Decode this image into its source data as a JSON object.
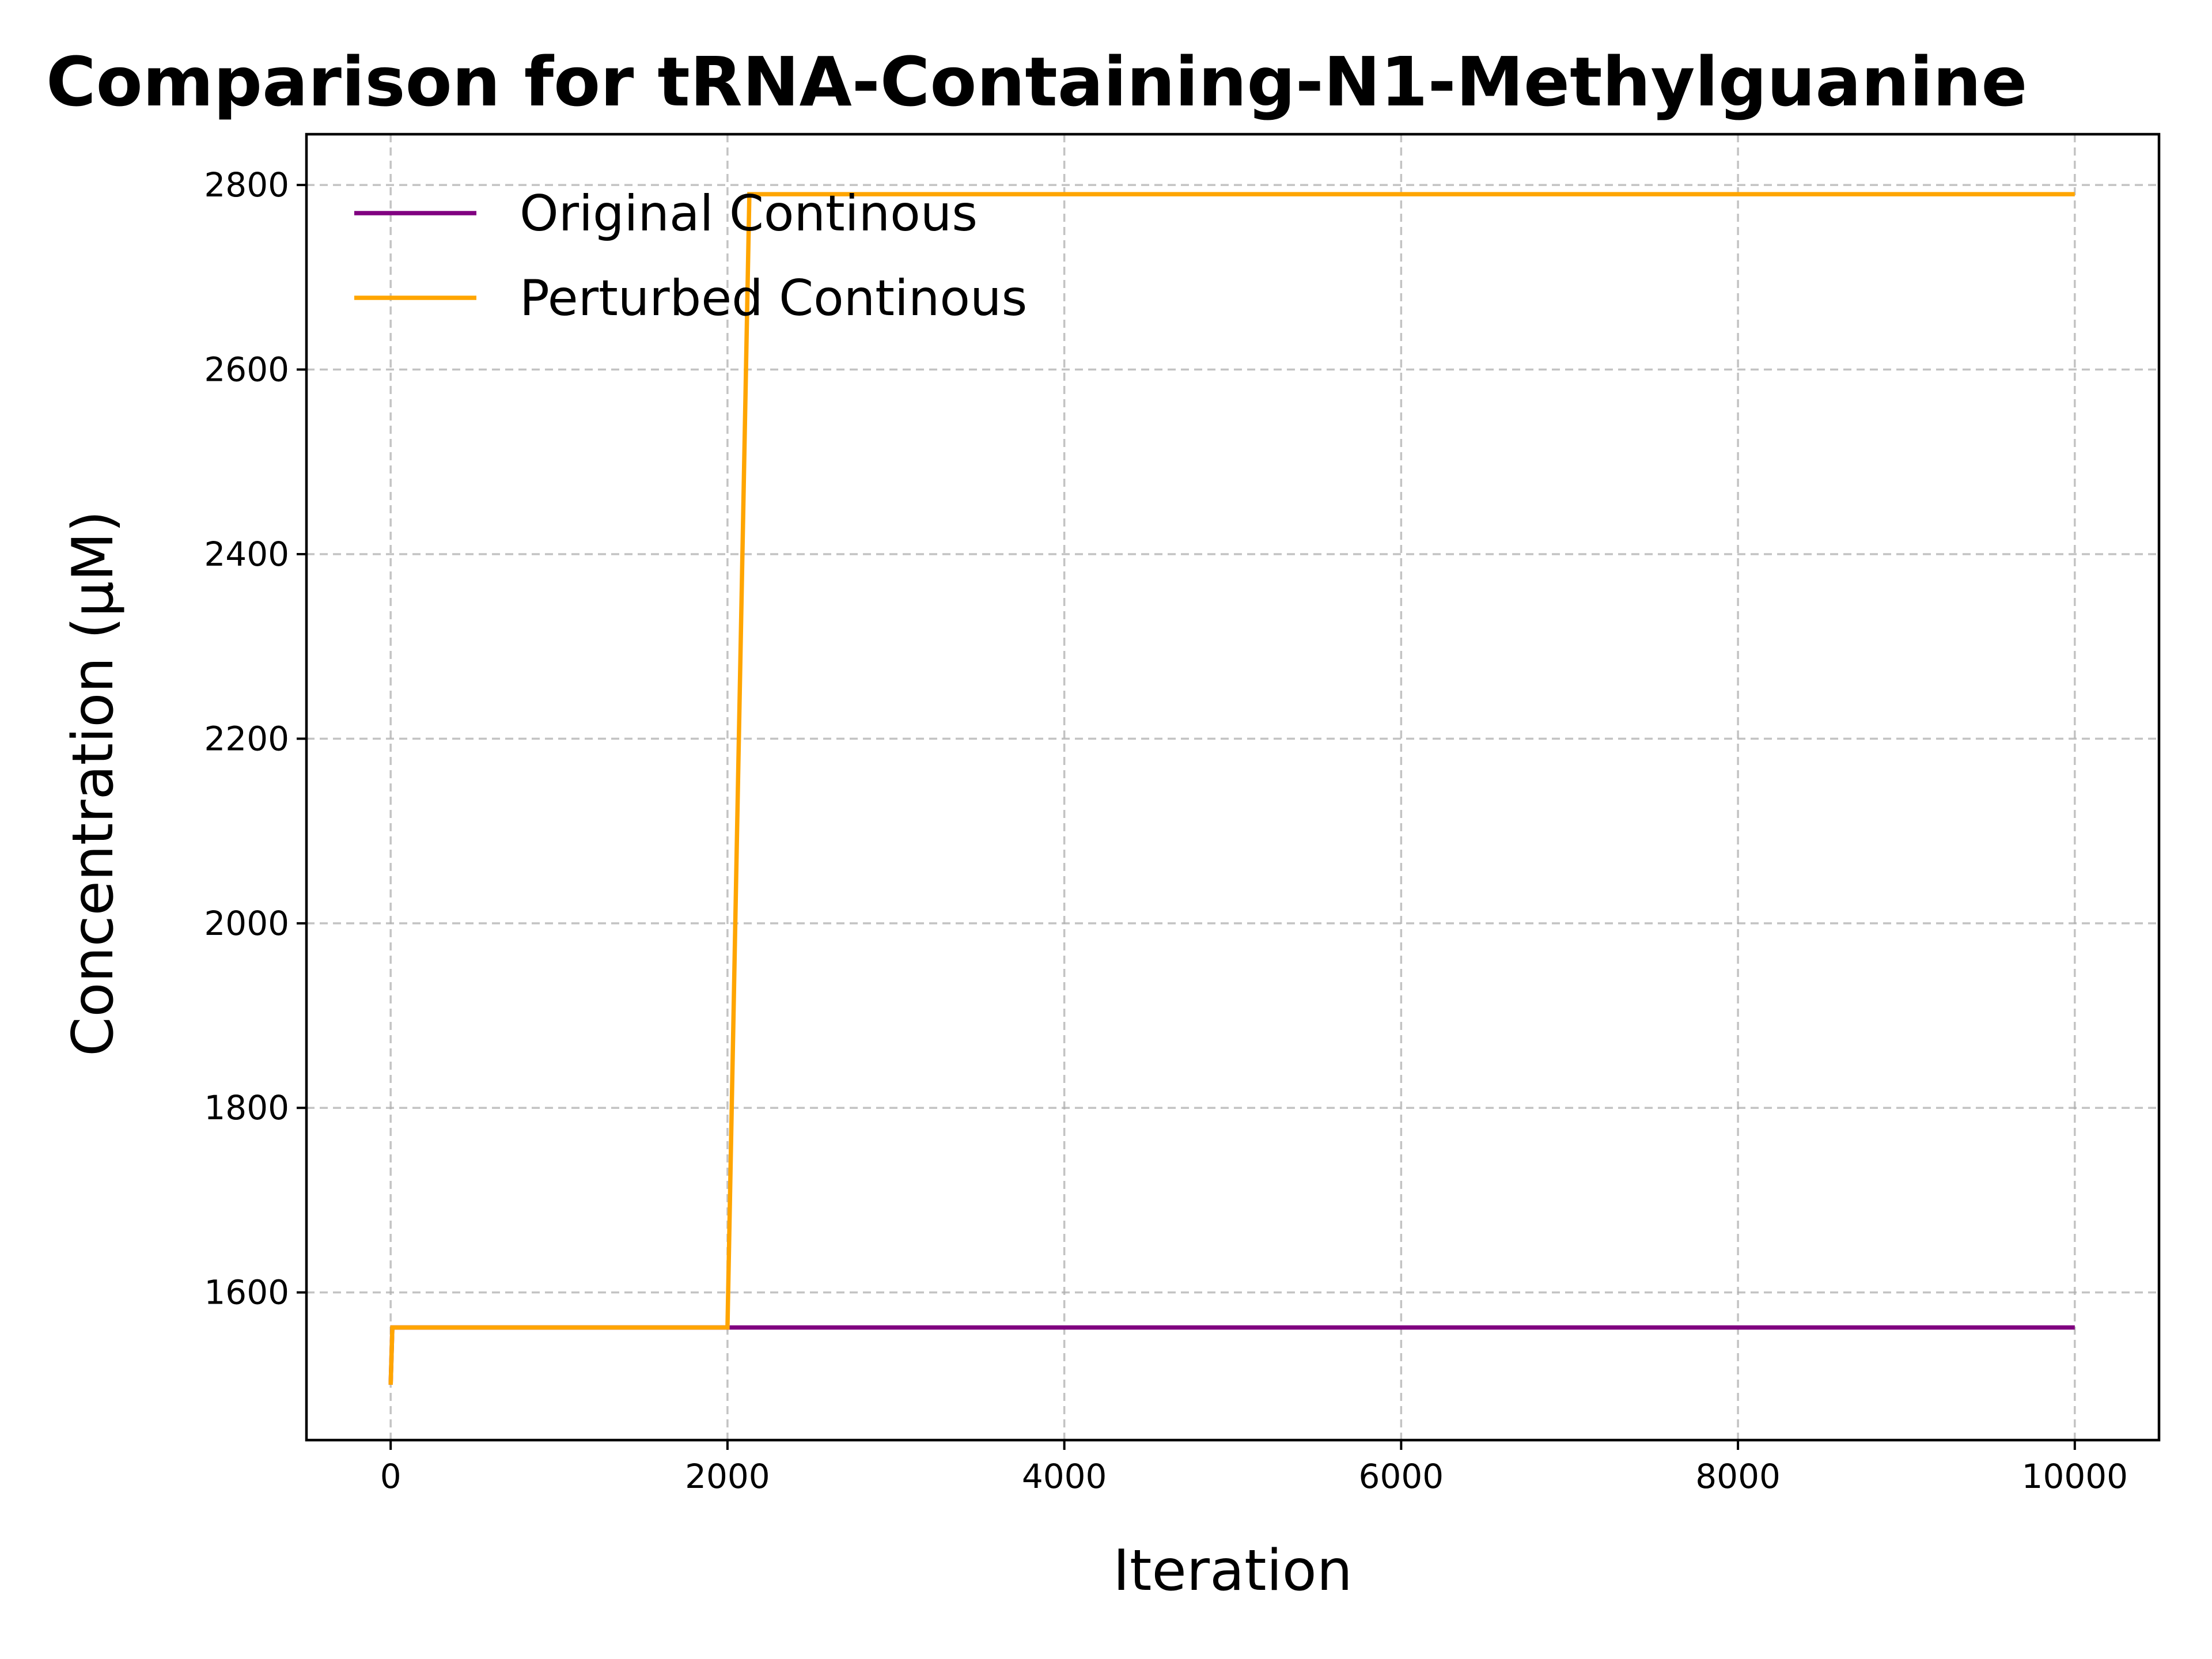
{
  "chart_data": {
    "type": "line",
    "title": "Comparison for tRNA-Containing-N1-Methylguanine",
    "xlabel": "Iteration",
    "ylabel": "Concentration (μM)",
    "xlim": [
      -500,
      10500
    ],
    "ylim": [
      1440,
      2855
    ],
    "xticks": [
      0,
      2000,
      4000,
      6000,
      8000,
      10000
    ],
    "xtick_labels": [
      "0",
      "2000",
      "4000",
      "6000",
      "8000",
      "10000"
    ],
    "yticks": [
      1600,
      1800,
      2000,
      2200,
      2400,
      2600,
      2800
    ],
    "ytick_labels": [
      "1600",
      "1800",
      "2000",
      "2200",
      "2400",
      "2600",
      "2800"
    ],
    "grid": true,
    "legend_position": "top-left",
    "series": [
      {
        "name": "Original Continous",
        "color": "#800080",
        "x": [
          0,
          10,
          20,
          2000,
          10000
        ],
        "y": [
          1500,
          1562,
          1562,
          1562,
          1562
        ]
      },
      {
        "name": "Perturbed Continous",
        "color": "#FFA500",
        "x": [
          0,
          10,
          20,
          2000,
          2130,
          10000
        ],
        "y": [
          1500,
          1562,
          1562,
          1562,
          2790,
          2790
        ]
      }
    ]
  }
}
